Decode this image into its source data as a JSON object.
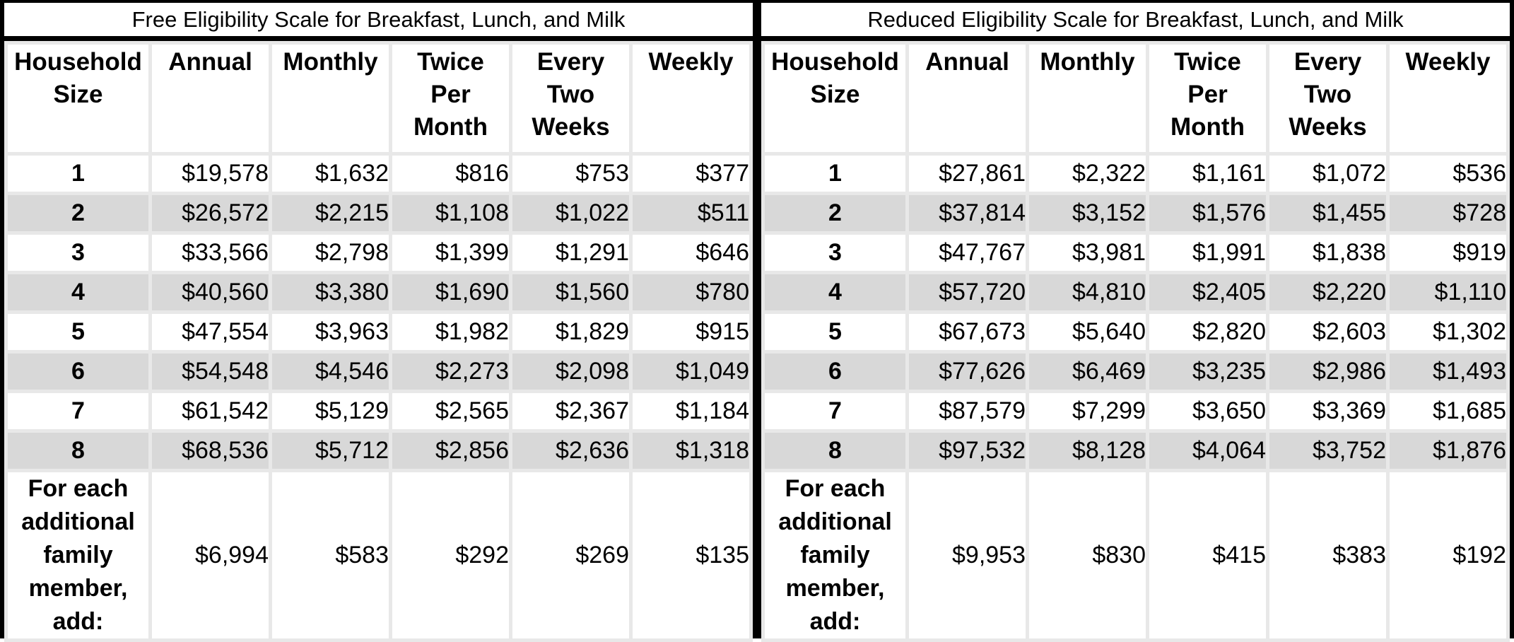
{
  "colors": {
    "frame_border": "#000000",
    "stripe": "#d8d8d8",
    "gridline": "#e8e8e8",
    "cell_background": "#ffffff",
    "text": "#000000"
  },
  "tables": [
    {
      "title": "Free Eligibility Scale for Breakfast, Lunch, and Milk",
      "columns": [
        "Household\nSize",
        "Annual",
        "Monthly",
        "Twice\nPer\nMonth",
        "Every\nTwo\nWeeks",
        "Weekly"
      ],
      "rows": [
        {
          "household_size": "1",
          "values": [
            "$19,578",
            "$1,632",
            "$816",
            "$753",
            "$377"
          ]
        },
        {
          "household_size": "2",
          "values": [
            "$26,572",
            "$2,215",
            "$1,108",
            "$1,022",
            "$511"
          ]
        },
        {
          "household_size": "3",
          "values": [
            "$33,566",
            "$2,798",
            "$1,399",
            "$1,291",
            "$646"
          ]
        },
        {
          "household_size": "4",
          "values": [
            "$40,560",
            "$3,380",
            "$1,690",
            "$1,560",
            "$780"
          ]
        },
        {
          "household_size": "5",
          "values": [
            "$47,554",
            "$3,963",
            "$1,982",
            "$1,829",
            "$915"
          ]
        },
        {
          "household_size": "6",
          "values": [
            "$54,548",
            "$4,546",
            "$2,273",
            "$2,098",
            "$1,049"
          ]
        },
        {
          "household_size": "7",
          "values": [
            "$61,542",
            "$5,129",
            "$2,565",
            "$2,367",
            "$1,184"
          ]
        },
        {
          "household_size": "8",
          "values": [
            "$68,536",
            "$5,712",
            "$2,856",
            "$2,636",
            "$1,318"
          ]
        }
      ],
      "additional": {
        "label": "For each\nadditional\nfamily\nmember,\nadd:",
        "values": [
          "$6,994",
          "$583",
          "$292",
          "$269",
          "$135"
        ]
      }
    },
    {
      "title": "Reduced Eligibility Scale for Breakfast, Lunch, and Milk",
      "columns": [
        "Household\nSize",
        "Annual",
        "Monthly",
        "Twice\nPer\nMonth",
        "Every\nTwo\nWeeks",
        "Weekly"
      ],
      "rows": [
        {
          "household_size": "1",
          "values": [
            "$27,861",
            "$2,322",
            "$1,161",
            "$1,072",
            "$536"
          ]
        },
        {
          "household_size": "2",
          "values": [
            "$37,814",
            "$3,152",
            "$1,576",
            "$1,455",
            "$728"
          ]
        },
        {
          "household_size": "3",
          "values": [
            "$47,767",
            "$3,981",
            "$1,991",
            "$1,838",
            "$919"
          ]
        },
        {
          "household_size": "4",
          "values": [
            "$57,720",
            "$4,810",
            "$2,405",
            "$2,220",
            "$1,110"
          ]
        },
        {
          "household_size": "5",
          "values": [
            "$67,673",
            "$5,640",
            "$2,820",
            "$2,603",
            "$1,302"
          ]
        },
        {
          "household_size": "6",
          "values": [
            "$77,626",
            "$6,469",
            "$3,235",
            "$2,986",
            "$1,493"
          ]
        },
        {
          "household_size": "7",
          "values": [
            "$87,579",
            "$7,299",
            "$3,650",
            "$3,369",
            "$1,685"
          ]
        },
        {
          "household_size": "8",
          "values": [
            "$97,532",
            "$8,128",
            "$4,064",
            "$3,752",
            "$1,876"
          ]
        }
      ],
      "additional": {
        "label": "For each\nadditional\nfamily\nmember,\nadd:",
        "values": [
          "$9,953",
          "$830",
          "$415",
          "$383",
          "$192"
        ]
      }
    }
  ]
}
